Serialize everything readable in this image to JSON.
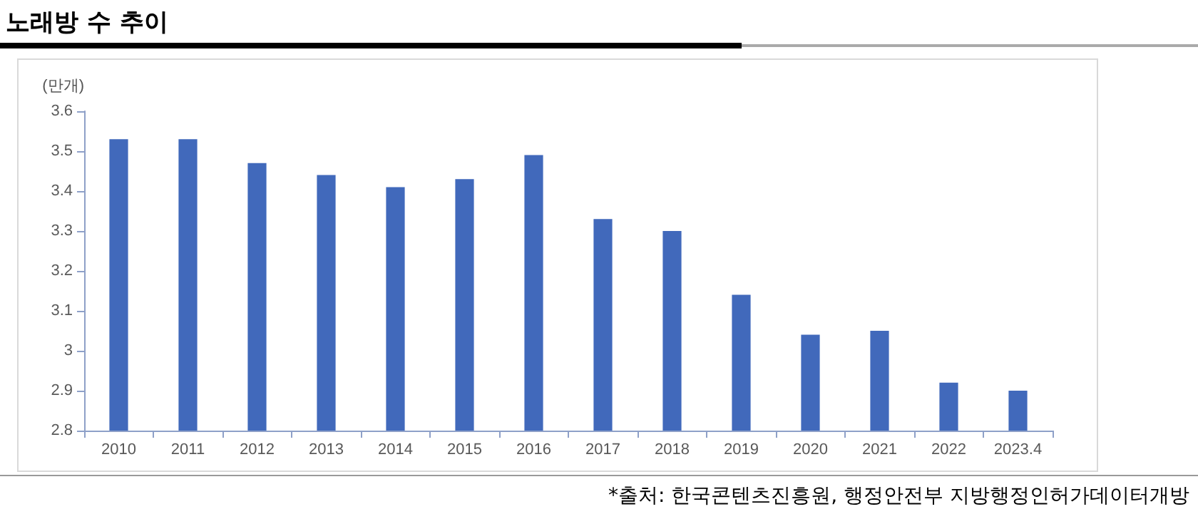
{
  "chart_data": {
    "type": "bar",
    "title": "노래방 수 추이",
    "ylabel": "(만개)",
    "categories": [
      "2010",
      "2011",
      "2012",
      "2013",
      "2014",
      "2015",
      "2016",
      "2017",
      "2018",
      "2019",
      "2020",
      "2021",
      "2022",
      "2023.4"
    ],
    "values": [
      3.53,
      3.53,
      3.47,
      3.44,
      3.41,
      3.43,
      3.49,
      3.33,
      3.3,
      3.14,
      3.04,
      3.05,
      2.92,
      2.9
    ],
    "color": "#4169bb",
    "ylim": [
      2.8,
      3.6
    ],
    "yticks": [
      2.8,
      2.9,
      3,
      3.1,
      3.2,
      3.3,
      3.4,
      3.5,
      3.6
    ],
    "grid": false,
    "annotations": [
      "*출처: 한국콘텐츠진흥원, 행정안전부 지방행정인허가데이터개방"
    ]
  }
}
